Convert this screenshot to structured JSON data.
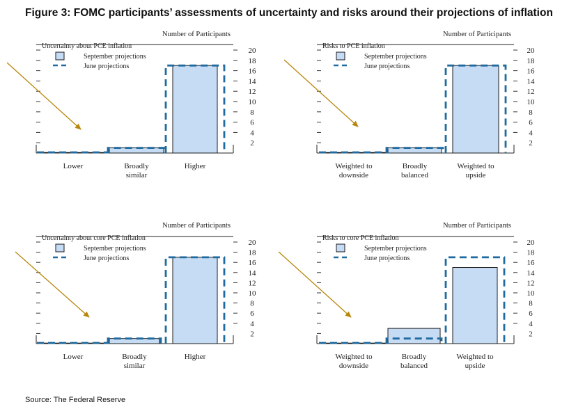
{
  "figure": {
    "title": "Figure 3: FOMC participants’ assessments of uncertainty and risks around their projections of inflation",
    "source": "Source: The Federal Reserve"
  },
  "colors": {
    "bar_fill": "#c6dcf5",
    "bar_stroke": "#1b1b1b",
    "june_line": "#1f6a9f",
    "arrow": "#b8860b"
  },
  "chart_data": [
    {
      "type": "bar",
      "title": "Uncertainty about PCE inflation",
      "ylabel": "Number of Participants",
      "categories": [
        "Lower",
        "Broadly similar",
        "Higher"
      ],
      "category_lines": [
        [
          "Lower"
        ],
        [
          "Broadly",
          "similar"
        ],
        [
          "Higher"
        ]
      ],
      "series": [
        {
          "name": "September projections",
          "style": "bar",
          "values": [
            0,
            1,
            17
          ]
        },
        {
          "name": "June projections",
          "style": "dashed-outline",
          "values": [
            0,
            1,
            17
          ]
        }
      ],
      "ylim": [
        0,
        20
      ],
      "yticks": [
        2,
        4,
        6,
        8,
        10,
        12,
        14,
        16,
        18,
        20
      ]
    },
    {
      "type": "bar",
      "title": "Risks to PCE inflation",
      "ylabel": "Number of Participants",
      "categories": [
        "Weighted to downside",
        "Broadly balanced",
        "Weighted to upside"
      ],
      "category_lines": [
        [
          "Weighted to",
          "downside"
        ],
        [
          "Broadly",
          "balanced"
        ],
        [
          "Weighted to",
          "upside"
        ]
      ],
      "series": [
        {
          "name": "September projections",
          "style": "bar",
          "values": [
            0,
            1,
            17
          ]
        },
        {
          "name": "June projections",
          "style": "dashed-outline",
          "values": [
            0,
            1,
            17
          ]
        }
      ],
      "ylim": [
        0,
        20
      ],
      "yticks": [
        2,
        4,
        6,
        8,
        10,
        12,
        14,
        16,
        18,
        20
      ]
    },
    {
      "type": "bar",
      "title": "Uncertainty about core PCE inflation",
      "ylabel": "Number of Participants",
      "categories": [
        "Lower",
        "Broadly similar",
        "Higher"
      ],
      "category_lines": [
        [
          "Lower"
        ],
        [
          "Broadly",
          "similar"
        ],
        [
          "Higher"
        ]
      ],
      "series": [
        {
          "name": "September projections",
          "style": "bar",
          "values": [
            0,
            1,
            17
          ]
        },
        {
          "name": "June projections",
          "style": "dashed-outline",
          "values": [
            0,
            1,
            17
          ]
        }
      ],
      "ylim": [
        0,
        20
      ],
      "yticks": [
        2,
        4,
        6,
        8,
        10,
        12,
        14,
        16,
        18,
        20
      ]
    },
    {
      "type": "bar",
      "title": "Risks to core PCE inflation",
      "ylabel": "Number of Participants",
      "categories": [
        "Weighted to downside",
        "Broadly balanced",
        "Weighted to upside"
      ],
      "category_lines": [
        [
          "Weighted to",
          "downside"
        ],
        [
          "Broadly",
          "balanced"
        ],
        [
          "Weighted to",
          "upside"
        ]
      ],
      "series": [
        {
          "name": "September projections",
          "style": "bar",
          "values": [
            0,
            3,
            15
          ]
        },
        {
          "name": "June projections",
          "style": "dashed-outline",
          "values": [
            0,
            1,
            17
          ]
        }
      ],
      "ylim": [
        0,
        20
      ],
      "yticks": [
        2,
        4,
        6,
        8,
        10,
        12,
        14,
        16,
        18,
        20
      ]
    }
  ]
}
